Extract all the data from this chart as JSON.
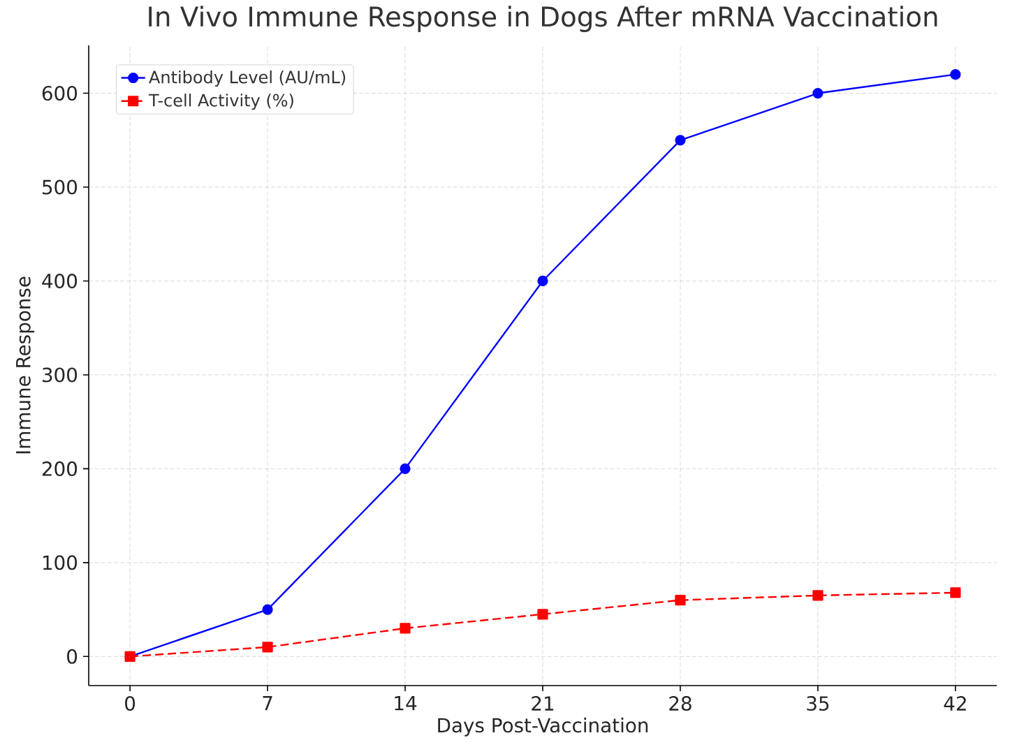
{
  "chart_data": {
    "type": "line",
    "title": "In Vivo Immune Response in Dogs After mRNA Vaccination",
    "xlabel": "Days Post-Vaccination",
    "ylabel": "Immune Response",
    "x": [
      0,
      7,
      14,
      21,
      28,
      35,
      42
    ],
    "series": [
      {
        "name": "Antibody Level (AU/mL)",
        "color": "#0000ff",
        "marker": "circle",
        "line_style": "solid",
        "values": [
          0,
          50,
          200,
          400,
          550,
          600,
          620
        ]
      },
      {
        "name": "T-cell Activity (%)",
        "color": "#ff0000",
        "marker": "square",
        "line_style": "dashed",
        "values": [
          0,
          10,
          30,
          45,
          60,
          65,
          68
        ]
      }
    ],
    "xlim": [
      -2.1,
      44.1
    ],
    "ylim": [
      -31,
      651
    ],
    "xticks": [
      0,
      7,
      14,
      21,
      28,
      35,
      42
    ],
    "yticks": [
      0,
      100,
      200,
      300,
      400,
      500,
      600
    ],
    "grid": true,
    "legend": "top left"
  }
}
